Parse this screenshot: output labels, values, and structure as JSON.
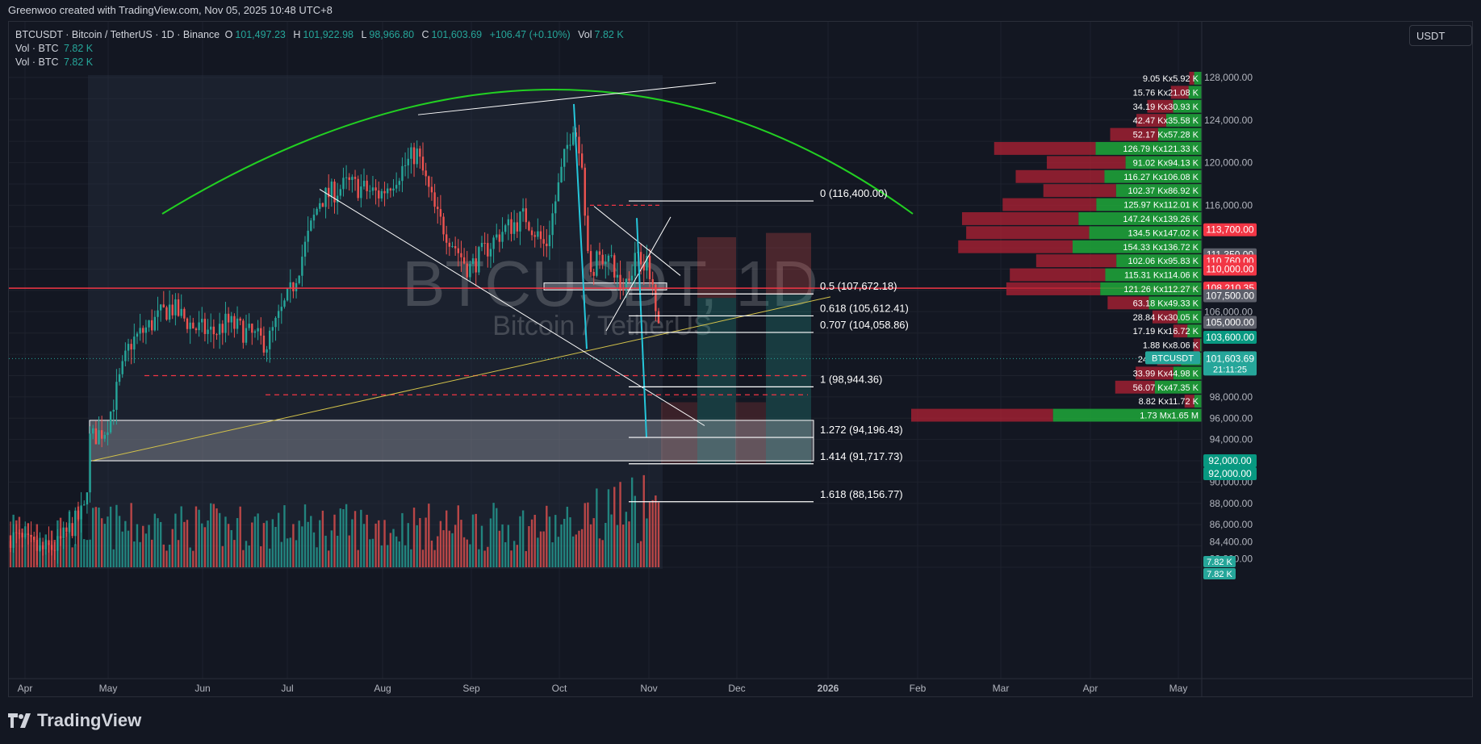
{
  "topbar": {
    "text": "Greenwoo created with TradingView.com, Nov 05, 2025 10:48 UTC+8"
  },
  "legend": {
    "symbol_line": "BTCUSDT · Bitcoin / TetherUS · 1D · Binance",
    "o_label": "O",
    "o_value": "101,497.23",
    "h_label": "H",
    "h_value": "101,922.98",
    "l_label": "L",
    "l_value": "98,966.80",
    "c_label": "C",
    "c_value": "101,603.69",
    "change": "+106.47 (+0.10%)",
    "vol_label": "Vol",
    "vol_value": "7.82 K",
    "vol_rows": [
      {
        "label": "Vol · BTC",
        "value": "7.82 K"
      },
      {
        "label": "Vol · BTC",
        "value": "7.82 K"
      }
    ]
  },
  "currency": "USDT",
  "watermark": {
    "main": "BTCUSDT, 1D",
    "sub": "Bitcoin / TetherUS"
  },
  "footer": {
    "brand": "TradingView"
  },
  "colors": {
    "bg": "#131722",
    "up": "#26a69a",
    "down": "#ef5350",
    "arc": "#22d022",
    "fib_line": "#ffffff",
    "yellow_line": "#d4c34a",
    "cyan_line": "#26c6da",
    "red_hline": "#f23645",
    "vp_up": "#1ea83a",
    "vp_down": "#b22234"
  },
  "chart_data": {
    "type": "candlestick",
    "title": "BTCUSDT · Bitcoin / TetherUS · 1D · Binance",
    "x_axis_ticks": [
      "Apr",
      "May",
      "Jun",
      "Jul",
      "Aug",
      "Sep",
      "Oct",
      "Nov",
      "Dec",
      "2026",
      "Feb",
      "Mar",
      "Apr",
      "May"
    ],
    "y_axis_ticks": [
      "128,000.00",
      "124,000.00",
      "120,000.00",
      "116,000.00",
      "106,000.00",
      "98,000.00",
      "96,000.00",
      "94,000.00",
      "90,000.00",
      "88,000.00",
      "86,000.00",
      "84,400.00",
      "82,800.00"
    ],
    "ylim": [
      80000,
      130000
    ],
    "last": {
      "open": 101497.23,
      "high": 101922.98,
      "low": 98966.8,
      "close": 101603.69
    },
    "fib_levels": [
      {
        "label": "0 (116,400.00)",
        "price": 116400.0
      },
      {
        "label": "0.5 (107,672.18)",
        "price": 107672.18
      },
      {
        "label": "0.618 (105,612.41)",
        "price": 105612.41
      },
      {
        "label": "0.707 (104,058.86)",
        "price": 104058.86
      },
      {
        "label": "1 (98,944.36)",
        "price": 98944.36
      },
      {
        "label": "1.272 (94,196.43)",
        "price": 94196.43
      },
      {
        "label": "1.414 (91,717.73)",
        "price": 91717.73
      },
      {
        "label": "1.618 (88,156.77)",
        "price": 88156.77
      }
    ],
    "price_badges": [
      {
        "text": "113,700.00",
        "price": 113700,
        "color": "#f23645"
      },
      {
        "text": "111,350.00",
        "price": 111350,
        "color": "#5d606b"
      },
      {
        "text": "110,760.00",
        "price": 110760,
        "color": "#f23645"
      },
      {
        "text": "110,000.00",
        "price": 110000,
        "color": "#f23645"
      },
      {
        "text": "108,210.35",
        "price": 108210.35,
        "color": "#f23645"
      },
      {
        "text": "107,500.00",
        "price": 107500,
        "color": "#5d606b"
      },
      {
        "text": "105,000.00",
        "price": 105000,
        "color": "#5d606b"
      },
      {
        "text": "103,600.00",
        "price": 103600,
        "color": "#089981"
      },
      {
        "text": "101,603.69",
        "price": 101603.69,
        "color": "#26a69a"
      },
      {
        "text": "92,000.00",
        "price": 92000,
        "color": "#089981"
      },
      {
        "text": "92,000.00",
        "price": 92000,
        "color": "#089981",
        "stack": 1
      }
    ],
    "symbol_badge": {
      "name": "BTCUSDT",
      "price": "101,603.69",
      "countdown": "21:11:25"
    },
    "volume_badges": [
      "7.82 K",
      "7.82 K"
    ],
    "volume_profile": [
      {
        "label": "9.05 Kx5.92 K",
        "up": 9.05,
        "down": 5.92
      },
      {
        "label": "15.76 Kx21.08 K",
        "up": 15.76,
        "down": 21.08
      },
      {
        "label": "34.19 Kx30.93 K",
        "up": 34.19,
        "down": 30.93
      },
      {
        "label": "42.47 Kx35.58 K",
        "up": 42.47,
        "down": 35.58
      },
      {
        "label": "52.17 Kx57.28 K",
        "up": 52.17,
        "down": 57.28
      },
      {
        "label": "126.79 Kx121.33 K",
        "up": 126.79,
        "down": 121.33
      },
      {
        "label": "91.02 Kx94.13 K",
        "up": 91.02,
        "down": 94.13
      },
      {
        "label": "116.27 Kx106.08 K",
        "up": 116.27,
        "down": 106.08
      },
      {
        "label": "102.37 Kx86.92 K",
        "up": 102.37,
        "down": 86.92
      },
      {
        "label": "125.97 Kx112.01 K",
        "up": 125.97,
        "down": 112.01
      },
      {
        "label": "147.24 Kx139.26 K",
        "up": 147.24,
        "down": 139.26
      },
      {
        "label": "134.5 Kx147.02 K",
        "up": 134.5,
        "down": 147.02
      },
      {
        "label": "154.33 Kx136.72 K",
        "up": 154.33,
        "down": 136.72
      },
      {
        "label": "102.06 Kx95.83 K",
        "up": 102.06,
        "down": 95.83
      },
      {
        "label": "115.31 Kx114.06 K",
        "up": 115.31,
        "down": 114.06
      },
      {
        "label": "121.26 Kx112.27 K",
        "up": 121.26,
        "down": 112.27
      },
      {
        "label": "63.18 Kx49.33 K",
        "up": 63.18,
        "down": 49.33
      },
      {
        "label": "28.84 Kx30.05 K",
        "up": 28.84,
        "down": 30.05
      },
      {
        "label": "17.19 Kx16.72 K",
        "up": 17.19,
        "down": 16.72
      },
      {
        "label": "1.88 Kx8.06 K",
        "up": 1.88,
        "down": 8.06
      },
      {
        "label": "24.71 Kx28.5 K",
        "up": 24.71,
        "down": 28.5
      },
      {
        "label": "33.99 Kx44.98 K",
        "up": 33.99,
        "down": 44.98
      },
      {
        "label": "56.07 Kx47.35 K",
        "up": 56.07,
        "down": 47.35
      },
      {
        "label": "8.82 Kx11.72 K",
        "up": 8.82,
        "down": 11.72
      },
      {
        "label": "1.73 Mx1.65 M",
        "up": 1730,
        "down": 1650
      }
    ]
  }
}
